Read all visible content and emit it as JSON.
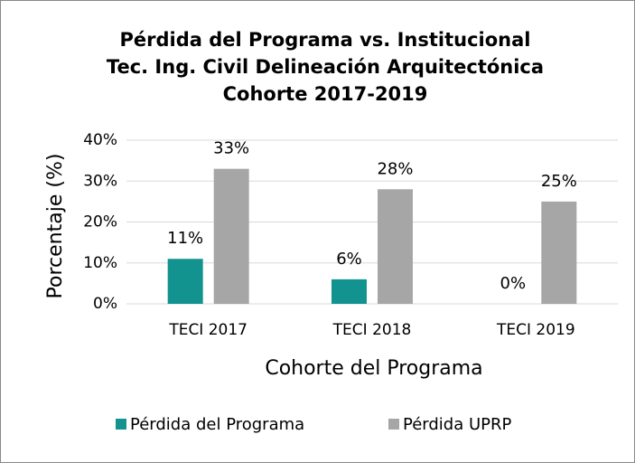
{
  "chart_data": {
    "type": "bar",
    "title": [
      "Pérdida del Programa vs. Institucional",
      "Tec. Ing. Civil Delineación Arquitectónica",
      "Cohorte 2017-2019"
    ],
    "x_label": "Cohorte del Programa",
    "y_label": "Porcentaje (%)",
    "categories": [
      "TECI 2017",
      "TECI 2018",
      "TECI 2019"
    ],
    "series": [
      {
        "name": "Pérdida del Programa",
        "color": "#13938f",
        "values": [
          11,
          6,
          0
        ],
        "value_labels": [
          "11%",
          "6%",
          "0%"
        ]
      },
      {
        "name": "Pérdida UPRP",
        "color": "#a6a6a6",
        "values": [
          33,
          28,
          25
        ],
        "value_labels": [
          "33%",
          "28%",
          "25%"
        ]
      }
    ],
    "ylim": [
      0,
      40
    ],
    "yticks": [
      {
        "value": 0,
        "label": "0%"
      },
      {
        "value": 10,
        "label": "10%"
      },
      {
        "value": 20,
        "label": "20%"
      },
      {
        "value": 30,
        "label": "30%"
      },
      {
        "value": 40,
        "label": "40%"
      }
    ],
    "grid": true,
    "legend": "bottom"
  }
}
